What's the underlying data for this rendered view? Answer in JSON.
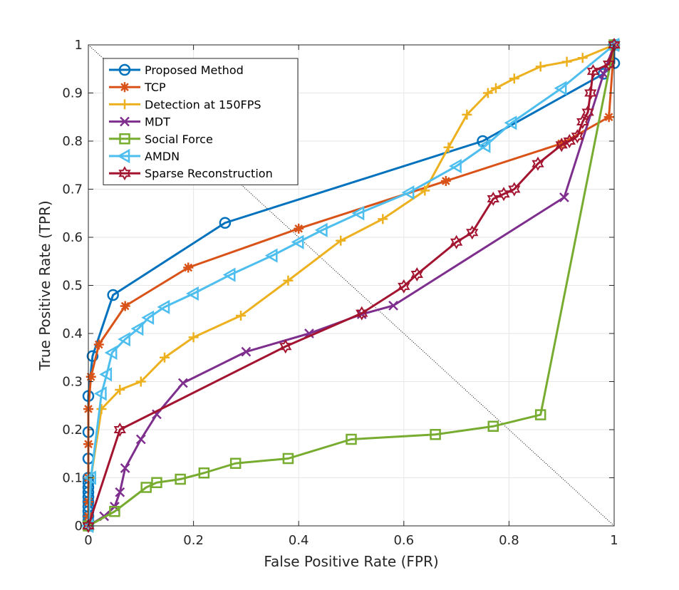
{
  "chart_data": {
    "type": "line",
    "title": "",
    "xlabel": "False Positive Rate (FPR)",
    "ylabel": "True Positive Rate (TPR)",
    "xlim": [
      0,
      1
    ],
    "ylim": [
      0,
      1
    ],
    "xticks": [
      0,
      0.2,
      0.4,
      0.6,
      0.8,
      1
    ],
    "yticks": [
      0,
      0.1,
      0.2,
      0.3,
      0.4,
      0.5,
      0.6,
      0.7,
      0.8,
      0.9,
      1
    ],
    "xtick_labels": [
      "0",
      "0.2",
      "0.4",
      "0.6",
      "0.8",
      "1"
    ],
    "ytick_labels": [
      "0",
      "0.1",
      "0.2",
      "0.3",
      "0.4",
      "0.5",
      "0.6",
      "0.7",
      "0.8",
      "0.9",
      "1"
    ],
    "grid": true,
    "legend_position": "top-left",
    "reference_line": {
      "name": "chance diagonal",
      "points": [
        [
          0,
          1
        ],
        [
          1,
          0
        ]
      ],
      "style": "dotted"
    },
    "series": [
      {
        "name": "Proposed Method",
        "color": "#0072BD",
        "marker": "circle",
        "points": [
          [
            0,
            0
          ],
          [
            0,
            0.01
          ],
          [
            0,
            0.02
          ],
          [
            0,
            0.03
          ],
          [
            0,
            0.04
          ],
          [
            0,
            0.05
          ],
          [
            0,
            0.06
          ],
          [
            0,
            0.07
          ],
          [
            0,
            0.08
          ],
          [
            0,
            0.09
          ],
          [
            0,
            0.1
          ],
          [
            0,
            0.14
          ],
          [
            0,
            0.195
          ],
          [
            0,
            0.27
          ],
          [
            0.008,
            0.353
          ],
          [
            0.047,
            0.48
          ],
          [
            0.26,
            0.63
          ],
          [
            0.75,
            0.8
          ],
          [
            0.98,
            0.94
          ],
          [
            1,
            0.962
          ],
          [
            1,
            1
          ]
        ]
      },
      {
        "name": "TCP",
        "color": "#D95319",
        "marker": "asterisk",
        "points": [
          [
            0,
            0
          ],
          [
            0,
            0.02
          ],
          [
            0,
            0.05
          ],
          [
            0,
            0.1
          ],
          [
            0,
            0.17
          ],
          [
            0,
            0.243
          ],
          [
            0.005,
            0.31
          ],
          [
            0.02,
            0.377
          ],
          [
            0.07,
            0.457
          ],
          [
            0.19,
            0.537
          ],
          [
            0.4,
            0.618
          ],
          [
            0.68,
            0.717
          ],
          [
            0.9,
            0.795
          ],
          [
            0.99,
            0.85
          ],
          [
            1,
            1
          ]
        ]
      },
      {
        "name": "Detection at 150FPS",
        "color": "#EDB120",
        "marker": "plus",
        "points": [
          [
            0,
            0
          ],
          [
            0.005,
            0.1
          ],
          [
            0.025,
            0.243
          ],
          [
            0.06,
            0.283
          ],
          [
            0.1,
            0.3
          ],
          [
            0.145,
            0.35
          ],
          [
            0.2,
            0.392
          ],
          [
            0.29,
            0.437
          ],
          [
            0.38,
            0.51
          ],
          [
            0.48,
            0.593
          ],
          [
            0.56,
            0.638
          ],
          [
            0.64,
            0.697
          ],
          [
            0.685,
            0.787
          ],
          [
            0.72,
            0.855
          ],
          [
            0.76,
            0.9
          ],
          [
            0.775,
            0.91
          ],
          [
            0.81,
            0.93
          ],
          [
            0.86,
            0.955
          ],
          [
            0.91,
            0.965
          ],
          [
            0.94,
            0.973
          ],
          [
            1,
            1
          ]
        ]
      },
      {
        "name": "MDT",
        "color": "#7E2F8E",
        "marker": "x",
        "points": [
          [
            0,
            0
          ],
          [
            0.03,
            0.02
          ],
          [
            0.05,
            0.04
          ],
          [
            0.06,
            0.07
          ],
          [
            0.07,
            0.12
          ],
          [
            0.1,
            0.18
          ],
          [
            0.13,
            0.232
          ],
          [
            0.18,
            0.297
          ],
          [
            0.3,
            0.362
          ],
          [
            0.42,
            0.4
          ],
          [
            0.52,
            0.44
          ],
          [
            0.58,
            0.458
          ],
          [
            0.905,
            0.683
          ],
          [
            0.98,
            0.94
          ],
          [
            1,
            1
          ]
        ]
      },
      {
        "name": "Social Force",
        "color": "#77AC30",
        "marker": "square",
        "points": [
          [
            0,
            0
          ],
          [
            0.05,
            0.03
          ],
          [
            0.11,
            0.08
          ],
          [
            0.13,
            0.09
          ],
          [
            0.175,
            0.097
          ],
          [
            0.22,
            0.11
          ],
          [
            0.28,
            0.13
          ],
          [
            0.38,
            0.14
          ],
          [
            0.5,
            0.18
          ],
          [
            0.66,
            0.19
          ],
          [
            0.77,
            0.207
          ],
          [
            0.86,
            0.231
          ],
          [
            1,
            1
          ]
        ]
      },
      {
        "name": "AMDN",
        "color": "#4DBEEE",
        "marker": "triangle-left",
        "points": [
          [
            0,
            0
          ],
          [
            0.005,
            0.1
          ],
          [
            0.025,
            0.275
          ],
          [
            0.035,
            0.315
          ],
          [
            0.045,
            0.36
          ],
          [
            0.07,
            0.388
          ],
          [
            0.095,
            0.41
          ],
          [
            0.115,
            0.433
          ],
          [
            0.145,
            0.455
          ],
          [
            0.2,
            0.483
          ],
          [
            0.27,
            0.522
          ],
          [
            0.35,
            0.562
          ],
          [
            0.4,
            0.59
          ],
          [
            0.445,
            0.615
          ],
          [
            0.515,
            0.65
          ],
          [
            0.61,
            0.693
          ],
          [
            0.7,
            0.748
          ],
          [
            0.755,
            0.79
          ],
          [
            0.805,
            0.838
          ],
          [
            0.9,
            0.91
          ],
          [
            1,
            1
          ]
        ]
      },
      {
        "name": "Sparse Reconstruction",
        "color": "#A2142F",
        "marker": "hexagram",
        "points": [
          [
            0,
            0
          ],
          [
            0.06,
            0.2
          ],
          [
            0.375,
            0.373
          ],
          [
            0.52,
            0.442
          ],
          [
            0.6,
            0.498
          ],
          [
            0.625,
            0.523
          ],
          [
            0.7,
            0.59
          ],
          [
            0.73,
            0.61
          ],
          [
            0.77,
            0.68
          ],
          [
            0.79,
            0.69
          ],
          [
            0.81,
            0.7
          ],
          [
            0.855,
            0.753
          ],
          [
            0.9,
            0.792
          ],
          [
            0.915,
            0.8
          ],
          [
            0.93,
            0.81
          ],
          [
            0.94,
            0.84
          ],
          [
            0.95,
            0.86
          ],
          [
            0.955,
            0.9
          ],
          [
            0.96,
            0.945
          ],
          [
            0.99,
            0.96
          ],
          [
            1,
            1
          ]
        ]
      }
    ]
  }
}
